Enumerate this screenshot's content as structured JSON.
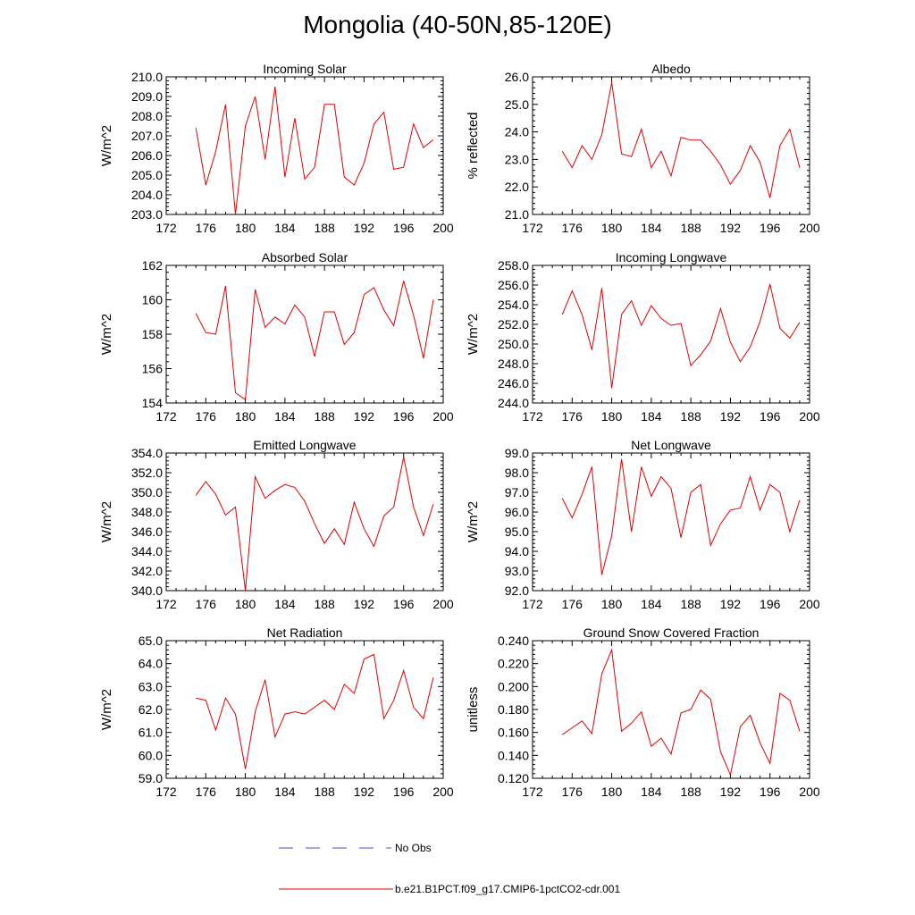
{
  "title": "Mongolia (40-50N,85-120E)",
  "legend": {
    "obs_label": "No Obs",
    "obs_color": "#4a4ad8",
    "model_label": "b.e21.B1PCT.f09_g17.CMIP6-1pctCO2-cdr.001",
    "model_color": "#e00000"
  },
  "chart_data": [
    {
      "type": "line",
      "title": "Incoming Solar",
      "ylabel": "W/m^2",
      "xlim": [
        172,
        200
      ],
      "xticks": [
        "172",
        "176",
        "180",
        "184",
        "188",
        "192",
        "196",
        "200"
      ],
      "ylim": [
        203,
        210
      ],
      "yticks": [
        "203.0",
        "204.0",
        "205.0",
        "206.0",
        "207.0",
        "208.0",
        "209.0",
        "210.0"
      ],
      "x": [
        175,
        176,
        177,
        178,
        179,
        180,
        181,
        182,
        183,
        184,
        185,
        186,
        187,
        188,
        189,
        190,
        191,
        192,
        193,
        194,
        195,
        196,
        197,
        198,
        199
      ],
      "series": [
        {
          "values": [
            207.4,
            204.5,
            206.2,
            208.6,
            203.0,
            207.5,
            209.0,
            205.8,
            209.5,
            204.9,
            207.9,
            204.8,
            205.4,
            208.6,
            208.6,
            204.9,
            204.5,
            205.6,
            207.6,
            208.2,
            205.3,
            205.4,
            207.6,
            206.4,
            206.8
          ]
        }
      ]
    },
    {
      "type": "line",
      "title": "Albedo",
      "ylabel": "% reflected",
      "xlim": [
        172,
        200
      ],
      "xticks": [
        "172",
        "176",
        "180",
        "184",
        "188",
        "192",
        "196",
        "200"
      ],
      "ylim": [
        21,
        26
      ],
      "yticks": [
        "21.0",
        "22.0",
        "23.0",
        "24.0",
        "25.0",
        "26.0"
      ],
      "x": [
        175,
        176,
        177,
        178,
        179,
        180,
        181,
        182,
        183,
        184,
        185,
        186,
        187,
        188,
        189,
        190,
        191,
        192,
        193,
        194,
        195,
        196,
        197,
        198,
        199
      ],
      "series": [
        {
          "values": [
            23.3,
            22.7,
            23.5,
            23.0,
            23.9,
            25.8,
            23.2,
            23.1,
            24.1,
            22.7,
            23.3,
            22.4,
            23.8,
            23.7,
            23.7,
            23.3,
            22.8,
            22.1,
            22.6,
            23.5,
            22.9,
            21.6,
            23.5,
            24.1,
            22.7
          ]
        }
      ]
    },
    {
      "type": "line",
      "title": "Absorbed Solar",
      "ylabel": "W/m^2",
      "xlim": [
        172,
        200
      ],
      "xticks": [
        "172",
        "176",
        "180",
        "184",
        "188",
        "192",
        "196",
        "200"
      ],
      "ylim": [
        154,
        162
      ],
      "yticks": [
        "154",
        "156",
        "158",
        "160",
        "162"
      ],
      "x": [
        175,
        176,
        177,
        178,
        179,
        180,
        181,
        182,
        183,
        184,
        185,
        186,
        187,
        188,
        189,
        190,
        191,
        192,
        193,
        194,
        195,
        196,
        197,
        198,
        199
      ],
      "series": [
        {
          "values": [
            159.2,
            158.1,
            158.0,
            160.8,
            154.6,
            154.2,
            160.6,
            158.4,
            159.0,
            158.6,
            159.7,
            159.0,
            156.7,
            159.3,
            159.3,
            157.4,
            158.1,
            160.3,
            160.7,
            159.4,
            158.5,
            161.1,
            159.1,
            156.6,
            160.0
          ]
        }
      ]
    },
    {
      "type": "line",
      "title": "Incoming Longwave",
      "ylabel": "W/m^2",
      "xlim": [
        172,
        200
      ],
      "xticks": [
        "172",
        "176",
        "180",
        "184",
        "188",
        "192",
        "196",
        "200"
      ],
      "ylim": [
        244,
        258
      ],
      "yticks": [
        "244.0",
        "246.0",
        "248.0",
        "250.0",
        "252.0",
        "254.0",
        "256.0",
        "258.0"
      ],
      "x": [
        175,
        176,
        177,
        178,
        179,
        180,
        181,
        182,
        183,
        184,
        185,
        186,
        187,
        188,
        189,
        190,
        191,
        192,
        193,
        194,
        195,
        196,
        197,
        198,
        199
      ],
      "series": [
        {
          "values": [
            253.0,
            255.4,
            253.0,
            249.4,
            255.7,
            245.5,
            253.0,
            254.4,
            251.9,
            253.9,
            252.6,
            251.9,
            252.1,
            247.8,
            248.9,
            250.3,
            253.6,
            250.2,
            248.2,
            249.7,
            252.3,
            256.1,
            251.6,
            250.6,
            252.2
          ]
        }
      ]
    },
    {
      "type": "line",
      "title": "Emitted Longwave",
      "ylabel": "W/m^2",
      "xlim": [
        172,
        200
      ],
      "xticks": [
        "172",
        "176",
        "180",
        "184",
        "188",
        "192",
        "196",
        "200"
      ],
      "ylim": [
        340,
        354
      ],
      "yticks": [
        "340.0",
        "342.0",
        "344.0",
        "346.0",
        "348.0",
        "350.0",
        "352.0",
        "354.0"
      ],
      "x": [
        175,
        176,
        177,
        178,
        179,
        180,
        181,
        182,
        183,
        184,
        185,
        186,
        187,
        188,
        189,
        190,
        191,
        192,
        193,
        194,
        195,
        196,
        197,
        198,
        199
      ],
      "series": [
        {
          "values": [
            349.7,
            351.1,
            349.8,
            347.7,
            348.5,
            340.0,
            351.6,
            349.4,
            350.2,
            350.8,
            350.5,
            349.1,
            346.8,
            344.8,
            346.3,
            344.7,
            349.0,
            346.3,
            344.5,
            347.6,
            348.5,
            353.6,
            348.5,
            345.6,
            348.8
          ]
        }
      ]
    },
    {
      "type": "line",
      "title": "Net Longwave",
      "ylabel": "W/m^2",
      "xlim": [
        172,
        200
      ],
      "xticks": [
        "172",
        "176",
        "180",
        "184",
        "188",
        "192",
        "196",
        "200"
      ],
      "ylim": [
        92,
        99
      ],
      "yticks": [
        "92.0",
        "93.0",
        "94.0",
        "95.0",
        "96.0",
        "97.0",
        "98.0",
        "99.0"
      ],
      "x": [
        175,
        176,
        177,
        178,
        179,
        180,
        181,
        182,
        183,
        184,
        185,
        186,
        187,
        188,
        189,
        190,
        191,
        192,
        193,
        194,
        195,
        196,
        197,
        198,
        199
      ],
      "series": [
        {
          "values": [
            96.7,
            95.7,
            96.9,
            98.3,
            92.8,
            94.8,
            98.7,
            95.0,
            98.3,
            96.8,
            97.8,
            97.2,
            94.7,
            97.0,
            97.4,
            94.3,
            95.4,
            96.1,
            96.2,
            97.8,
            96.1,
            97.4,
            97.0,
            95.0,
            96.6
          ]
        }
      ]
    },
    {
      "type": "line",
      "title": "Net Radiation",
      "ylabel": "W/m^2",
      "xlim": [
        172,
        200
      ],
      "xticks": [
        "172",
        "176",
        "180",
        "184",
        "188",
        "192",
        "196",
        "200"
      ],
      "ylim": [
        59,
        65
      ],
      "yticks": [
        "59.0",
        "60.0",
        "61.0",
        "62.0",
        "63.0",
        "64.0",
        "65.0"
      ],
      "x": [
        175,
        176,
        177,
        178,
        179,
        180,
        181,
        182,
        183,
        184,
        185,
        186,
        187,
        188,
        189,
        190,
        191,
        192,
        193,
        194,
        195,
        196,
        197,
        198,
        199
      ],
      "series": [
        {
          "values": [
            62.5,
            62.4,
            61.1,
            62.5,
            61.8,
            59.4,
            61.9,
            63.3,
            60.8,
            61.8,
            61.9,
            61.8,
            62.1,
            62.4,
            62.0,
            63.1,
            62.7,
            64.2,
            64.4,
            61.6,
            62.4,
            63.7,
            62.1,
            61.6,
            63.4
          ]
        }
      ]
    },
    {
      "type": "line",
      "title": "Ground Snow Covered Fraction",
      "ylabel": "unitless",
      "xlim": [
        172,
        200
      ],
      "xticks": [
        "172",
        "176",
        "180",
        "184",
        "188",
        "192",
        "196",
        "200"
      ],
      "ylim": [
        0.12,
        0.24
      ],
      "yticks": [
        "0.120",
        "0.140",
        "0.160",
        "0.180",
        "0.200",
        "0.220",
        "0.240"
      ],
      "x": [
        175,
        176,
        177,
        178,
        179,
        180,
        181,
        182,
        183,
        184,
        185,
        186,
        187,
        188,
        189,
        190,
        191,
        192,
        193,
        194,
        195,
        196,
        197,
        198,
        199
      ],
      "series": [
        {
          "values": [
            0.158,
            0.164,
            0.17,
            0.159,
            0.211,
            0.232,
            0.161,
            0.168,
            0.178,
            0.148,
            0.155,
            0.141,
            0.177,
            0.18,
            0.197,
            0.189,
            0.143,
            0.123,
            0.165,
            0.175,
            0.151,
            0.133,
            0.194,
            0.188,
            0.161
          ]
        }
      ]
    }
  ]
}
